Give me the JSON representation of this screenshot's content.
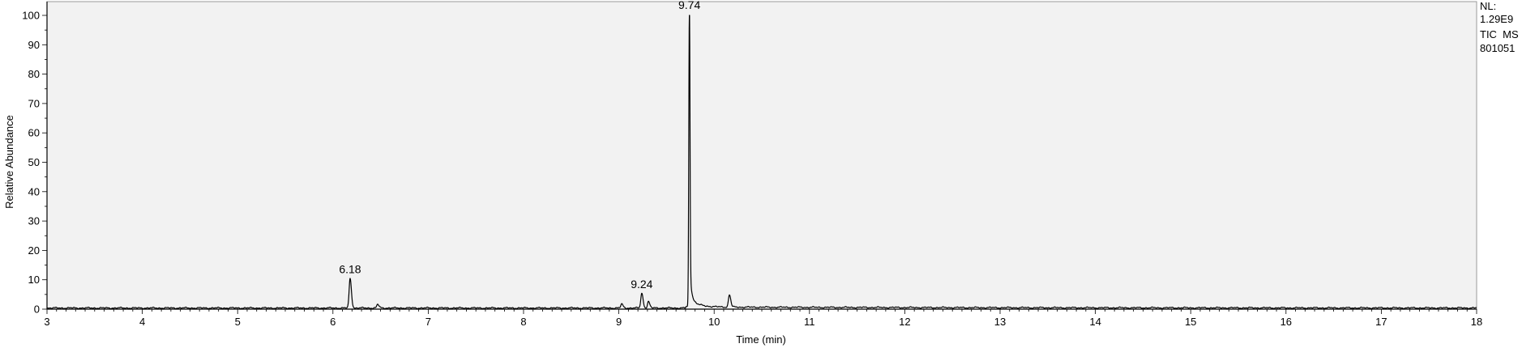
{
  "chart_data": {
    "type": "line",
    "title": "",
    "xlabel": "Time (min)",
    "ylabel": "Relative Abundance",
    "xlim": [
      3,
      18
    ],
    "ylim": [
      0,
      100
    ],
    "xticks": [
      "3",
      "4",
      "5",
      "6",
      "7",
      "8",
      "9",
      "10",
      "11",
      "12",
      "13",
      "14",
      "15",
      "16",
      "17",
      "18"
    ],
    "yticks": [
      "0",
      "10",
      "20",
      "30",
      "40",
      "50",
      "60",
      "70",
      "80",
      "90",
      "100"
    ],
    "info": {
      "nl_label": "NL:",
      "nl_value": "1.29E9",
      "trace": "TIC  MS",
      "sample": "801051"
    },
    "peaks": [
      {
        "time": 6.18,
        "height": 10,
        "label": "6.18"
      },
      {
        "time": 9.24,
        "height": 5,
        "label": "9.24"
      },
      {
        "time": 9.74,
        "height": 100,
        "label": "9.74"
      }
    ],
    "minor_peaks": [
      {
        "time": 6.47,
        "height": 1.2
      },
      {
        "time": 9.03,
        "height": 1.3
      },
      {
        "time": 9.31,
        "height": 2.2
      },
      {
        "time": 10.16,
        "height": 4.2
      }
    ],
    "colors": {
      "background": "#f2f2f2",
      "line": "#000000",
      "axis": "#000000"
    }
  }
}
